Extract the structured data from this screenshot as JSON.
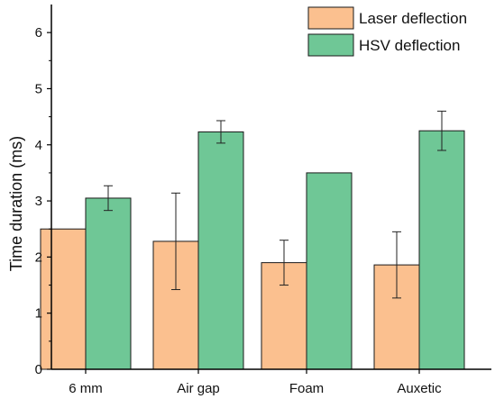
{
  "chart_data": {
    "type": "bar",
    "categories": [
      "6 mm",
      "Air gap",
      "Foam",
      "Auxetic"
    ],
    "series": [
      {
        "name": "Laser deflection",
        "color": "#fbc08f",
        "values": [
          2.5,
          2.28,
          1.9,
          1.86
        ],
        "errors": [
          0,
          0.86,
          0.4,
          0.59
        ]
      },
      {
        "name": "HSV deflection",
        "color": "#6fc796",
        "values": [
          3.05,
          4.23,
          3.5,
          4.25
        ],
        "errors": [
          0.22,
          0.2,
          0,
          0.35
        ]
      }
    ],
    "xlabel": "",
    "ylabel": "Time duration (ms)",
    "ylim": [
      0,
      6.5
    ],
    "yticks": [
      0,
      1,
      2,
      3,
      4,
      5,
      6
    ],
    "grid": false,
    "legend_position": "top-right"
  }
}
